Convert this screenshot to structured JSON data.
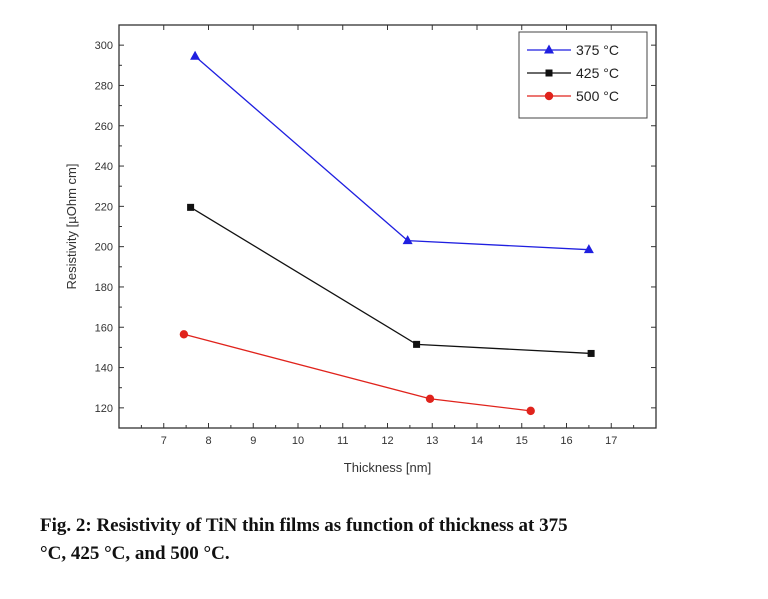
{
  "chart_data": {
    "type": "line",
    "xlabel": "Thickness [nm]",
    "ylabel": "Resistivity [µOhm cm]",
    "xlim": [
      6,
      18
    ],
    "ylim": [
      110,
      310
    ],
    "xticks": [
      7,
      8,
      9,
      10,
      11,
      12,
      13,
      14,
      15,
      16,
      17
    ],
    "yticks": [
      120,
      140,
      160,
      180,
      200,
      220,
      240,
      260,
      280,
      300
    ],
    "grid": false,
    "legend_position": "top-right",
    "series": [
      {
        "name": "375 °C",
        "color": "#1f1fe0",
        "marker": "triangle",
        "x": [
          7.7,
          12.45,
          16.5
        ],
        "y": [
          294.5,
          203,
          198.5
        ]
      },
      {
        "name": "425 °C",
        "color": "#111111",
        "marker": "square",
        "x": [
          7.6,
          12.65,
          16.55
        ],
        "y": [
          219.5,
          151.5,
          147
        ]
      },
      {
        "name": "500 °C",
        "color": "#e0231c",
        "marker": "circle",
        "x": [
          7.45,
          12.95,
          15.2
        ],
        "y": [
          156.5,
          124.5,
          118.5
        ]
      }
    ]
  },
  "caption": {
    "line1": "Fig. 2: Resistivity of TiN thin films as function of thickness at 375",
    "line2": "°C, 425 °C, and 500 °C."
  }
}
